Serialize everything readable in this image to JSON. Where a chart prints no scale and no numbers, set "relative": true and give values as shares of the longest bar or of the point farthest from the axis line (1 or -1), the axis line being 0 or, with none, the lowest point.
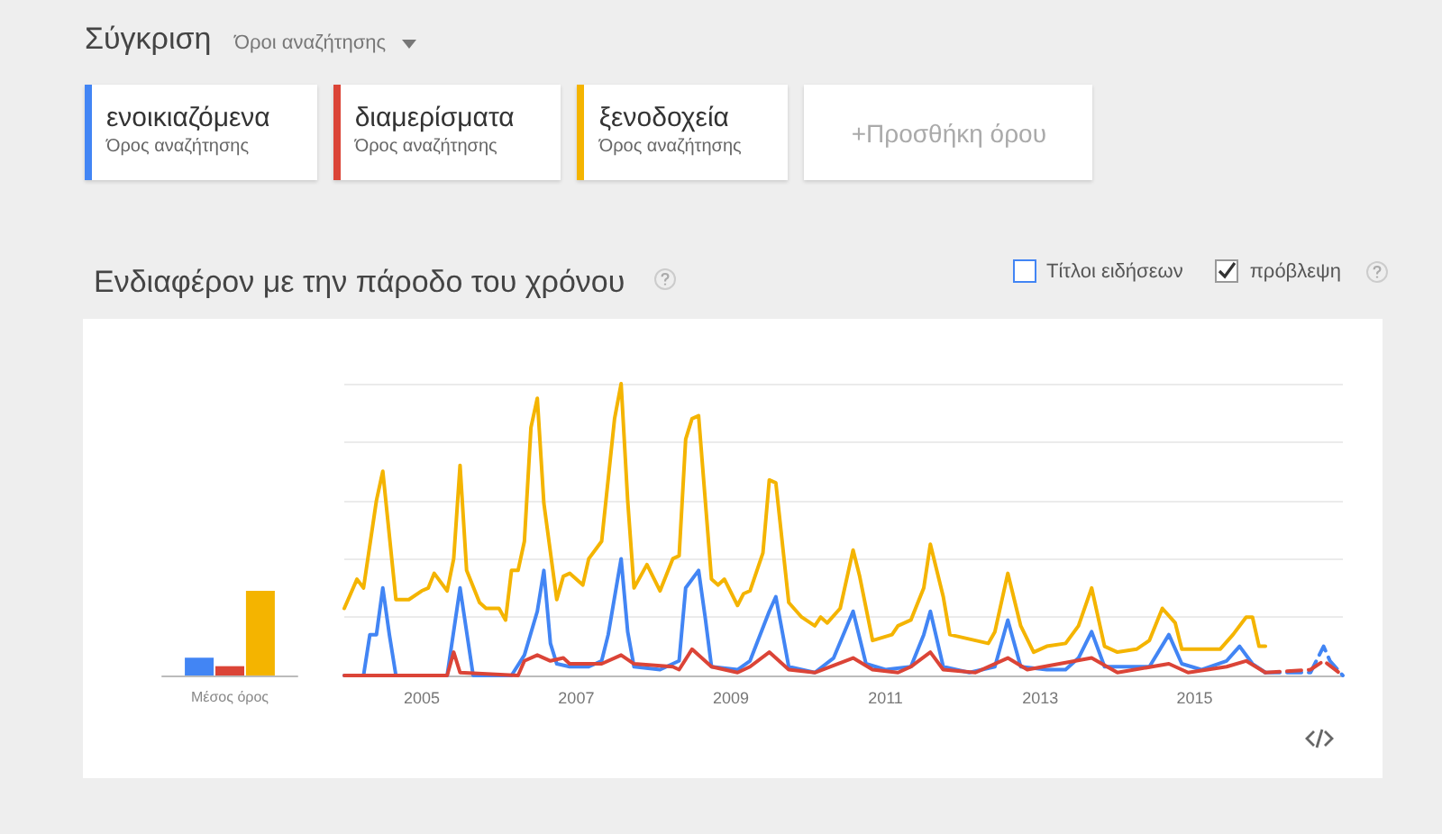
{
  "chart_data": [
    {
      "type": "other",
      "title": "Σύγκριση",
      "annotations": [
        "Όροι αναζήτησης",
        "+Προσθήκη όρου"
      ]
    },
    {
      "type": "bar",
      "categories": [
        "Μέσος όρος"
      ],
      "relative": true,
      "series": [
        {
          "color": "#4285f4",
          "values": [
            0.21
          ]
        },
        {
          "color": "#db4437",
          "values": [
            0.11
          ]
        },
        {
          "color": "#f4b400",
          "values": [
            1
          ]
        }
      ]
    },
    {
      "type": "line",
      "title": "Ενδιαφέρον με την πάροδο του χρόνου",
      "relative": true,
      "grid": "y",
      "legend": "top left",
      "marker": "none",
      "xlim": [
        "2004-01",
        "2016-12"
      ],
      "xticks": [
        "2005",
        "2007",
        "2009",
        "2011",
        "2013",
        "2015"
      ],
      "annotations": [
        "Όρος αναζήτησης",
        "Όρος αναζήτησης",
        "Όρος αναζήτησης",
        "Τίτλοι ειδήσεων",
        "πρόβλεψη"
      ],
      "series": [
        {
          "name": "ενοικιαζόμενα",
          "color": "#4285f4",
          "line_style": "solid",
          "x": [
            "2004-01",
            "2004-04",
            "2004-05",
            "2004-06",
            "2004-07",
            "2004-08",
            "2004-09",
            "2005-05",
            "2005-07",
            "2005-09",
            "2006-03",
            "2006-05",
            "2006-07",
            "2006-08",
            "2006-09",
            "2006-10",
            "2006-12",
            "2007-03",
            "2007-05",
            "2007-06",
            "2007-08",
            "2007-09",
            "2007-10",
            "2008-02",
            "2008-04",
            "2008-05",
            "2008-06",
            "2008-08",
            "2008-09",
            "2008-10",
            "2009-02",
            "2009-04",
            "2009-07",
            "2009-08",
            "2009-10",
            "2010-02",
            "2010-05",
            "2010-08",
            "2010-10",
            "2011-01",
            "2011-05",
            "2011-07",
            "2011-08",
            "2011-10",
            "2012-02",
            "2012-06",
            "2012-08",
            "2012-10",
            "2013-02",
            "2013-05",
            "2013-07",
            "2013-09",
            "2013-11",
            "2014-06",
            "2014-09",
            "2014-11",
            "2015-02",
            "2015-06",
            "2015-08",
            "2015-10",
            "2015-12"
          ],
          "values": [
            0,
            0,
            0.14,
            0.14,
            0.3,
            0.14,
            0,
            0,
            0.3,
            0,
            0,
            0.07,
            0.22,
            0.36,
            0.11,
            0.04,
            0.03,
            0.03,
            0.05,
            0.14,
            0.4,
            0.15,
            0.03,
            0.02,
            0.04,
            0.05,
            0.3,
            0.36,
            0.2,
            0.03,
            0.02,
            0.05,
            0.22,
            0.27,
            0.03,
            0.01,
            0.06,
            0.22,
            0.04,
            0.02,
            0.03,
            0.14,
            0.22,
            0.03,
            0.01,
            0.03,
            0.19,
            0.03,
            0.02,
            0.02,
            0.06,
            0.15,
            0.03,
            0.03,
            0.14,
            0.04,
            0.02,
            0.05,
            0.1,
            0.04,
            0.01
          ]
        },
        {
          "name": "διαμερίσματα",
          "color": "#db4437",
          "line_style": "solid",
          "x": [
            "2004-01",
            "2005-05",
            "2005-06",
            "2005-07",
            "2006-04",
            "2006-05",
            "2006-07",
            "2006-09",
            "2006-11",
            "2006-12",
            "2007-05",
            "2007-08",
            "2007-10",
            "2008-04",
            "2008-05",
            "2008-07",
            "2008-10",
            "2009-02",
            "2009-04",
            "2009-07",
            "2009-10",
            "2010-02",
            "2010-08",
            "2010-11",
            "2011-03",
            "2011-05",
            "2011-08",
            "2011-10",
            "2012-03",
            "2012-08",
            "2012-11",
            "2013-09",
            "2014-01",
            "2014-09",
            "2014-12",
            "2015-06",
            "2015-09",
            "2015-12"
          ],
          "values": [
            0,
            0,
            0.08,
            0.01,
            0,
            0.05,
            0.07,
            0.05,
            0.06,
            0.04,
            0.04,
            0.07,
            0.04,
            0.03,
            0.02,
            0.09,
            0.03,
            0.01,
            0.03,
            0.08,
            0.02,
            0.01,
            0.06,
            0.02,
            0.01,
            0.03,
            0.08,
            0.02,
            0.01,
            0.06,
            0.02,
            0.06,
            0.01,
            0.04,
            0.01,
            0.03,
            0.05,
            0.01
          ]
        },
        {
          "name": "ξενοδοχεία",
          "color": "#f4b400",
          "line_style": "solid",
          "x": [
            "2004-01",
            "2004-03",
            "2004-04",
            "2004-06",
            "2004-07",
            "2004-08",
            "2004-09",
            "2004-11",
            "2005-01",
            "2005-02",
            "2005-03",
            "2005-05",
            "2005-06",
            "2005-07",
            "2005-08",
            "2005-10",
            "2005-11",
            "2006-01",
            "2006-02",
            "2006-03",
            "2006-04",
            "2006-05",
            "2006-06",
            "2006-07",
            "2006-08",
            "2006-10",
            "2006-11",
            "2006-12",
            "2007-02",
            "2007-03",
            "2007-05",
            "2007-07",
            "2007-08",
            "2007-09",
            "2007-10",
            "2007-12",
            "2008-02",
            "2008-04",
            "2008-05",
            "2008-06",
            "2008-07",
            "2008-08",
            "2008-10",
            "2008-11",
            "2008-12",
            "2009-02",
            "2009-03",
            "2009-04",
            "2009-06",
            "2009-07",
            "2009-08",
            "2009-10",
            "2009-12",
            "2010-02",
            "2010-03",
            "2010-04",
            "2010-06",
            "2010-08",
            "2010-09",
            "2010-11",
            "2011-02",
            "2011-03",
            "2011-05",
            "2011-07",
            "2011-08",
            "2011-10",
            "2011-11",
            "2012-01",
            "2012-05",
            "2012-06",
            "2012-08",
            "2012-10",
            "2012-12",
            "2013-02",
            "2013-05",
            "2013-07",
            "2013-09",
            "2013-11",
            "2014-01",
            "2014-04",
            "2014-06",
            "2014-08",
            "2014-10",
            "2014-11",
            "2015-02",
            "2015-05",
            "2015-07",
            "2015-09",
            "2015-10",
            "2015-11",
            "2015-12"
          ],
          "values": [
            0.23,
            0.33,
            0.3,
            0.6,
            0.7,
            0.48,
            0.26,
            0.26,
            0.29,
            0.3,
            0.35,
            0.29,
            0.4,
            0.72,
            0.36,
            0.25,
            0.23,
            0.23,
            0.19,
            0.36,
            0.36,
            0.46,
            0.85,
            0.95,
            0.59,
            0.26,
            0.34,
            0.35,
            0.31,
            0.4,
            0.46,
            0.88,
            1,
            0.6,
            0.3,
            0.38,
            0.29,
            0.4,
            0.41,
            0.81,
            0.88,
            0.89,
            0.33,
            0.31,
            0.33,
            0.24,
            0.28,
            0.29,
            0.42,
            0.67,
            0.66,
            0.25,
            0.2,
            0.17,
            0.2,
            0.18,
            0.23,
            0.43,
            0.34,
            0.12,
            0.14,
            0.17,
            0.19,
            0.3,
            0.45,
            0.27,
            0.14,
            0.13,
            0.11,
            0.15,
            0.35,
            0.17,
            0.08,
            0.1,
            0.11,
            0.17,
            0.3,
            0.1,
            0.08,
            0.09,
            0.12,
            0.23,
            0.18,
            0.09,
            0.09,
            0.09,
            0.14,
            0.2,
            0.2,
            0.1,
            0.1
          ]
        },
        {
          "color": "#4285f4",
          "line_style": "dashed",
          "x": [
            "2015-12",
            "2016-07",
            "2016-09",
            "2016-10",
            "2016-12"
          ],
          "values": [
            0.01,
            0.01,
            0.1,
            0.05,
            0
          ]
        },
        {
          "color": "#db4437",
          "line_style": "dashed",
          "x": [
            "2015-12",
            "2016-07",
            "2016-09",
            "2016-12"
          ],
          "values": [
            0.01,
            0.02,
            0.05,
            0
          ]
        }
      ]
    }
  ]
}
